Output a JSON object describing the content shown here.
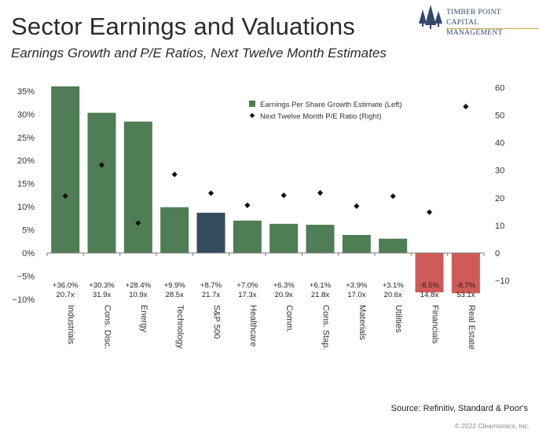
{
  "header": {
    "title": "Sector Earnings and Valuations",
    "subtitle": "Earnings Growth and P/E Ratios, Next Twelve Month Estimates"
  },
  "logo": {
    "line1": "Timber Point",
    "line2": "Capital Management",
    "color": "#34486b"
  },
  "footer": {
    "source": "Source: Refinitiv, Standard & Poor's",
    "copyright": "© 2022 Clearnomics, Inc."
  },
  "chart_data": {
    "type": "bar",
    "categories": [
      "Industrials",
      "Cons. Disc.",
      "Energy",
      "Technology",
      "S&P 500",
      "Healthcare",
      "Comm.",
      "Cons. Stap.",
      "Materials",
      "Utilities",
      "Financials",
      "Real Estate"
    ],
    "series": [
      {
        "name": "Earnings Per Share Growth Estimate (Left)",
        "type": "bar",
        "axis": "left",
        "values": [
          36.0,
          30.3,
          28.4,
          9.9,
          8.7,
          7.0,
          6.3,
          6.1,
          3.9,
          3.1,
          -8.5,
          -8.7
        ],
        "labels": [
          "+36.0%",
          "+30.3%",
          "+28.4%",
          "+9.9%",
          "+8.7%",
          "+7.0%",
          "+6.3%",
          "+6.1%",
          "+3.9%",
          "+3.1%",
          "-8.5%",
          "-8.7%"
        ]
      },
      {
        "name": "Next Twelve Month P/E Ratio (Right)",
        "type": "scatter",
        "axis": "right",
        "values": [
          20.7,
          31.9,
          10.9,
          28.5,
          21.7,
          17.3,
          20.9,
          21.8,
          17.0,
          20.6,
          14.8,
          53.1
        ],
        "labels": [
          "20.7x",
          "31.9x",
          "10.9x",
          "28.5x",
          "21.7x",
          "17.3x",
          "20.9x",
          "21.8x",
          "17.0x",
          "20.6x",
          "14.8x",
          "53.1x"
        ]
      }
    ],
    "y_left": {
      "ticks": [
        "35%",
        "30%",
        "25%",
        "20%",
        "15%",
        "10%",
        "5%",
        "0%",
        "−5%",
        "−10%"
      ],
      "values": [
        35,
        30,
        25,
        20,
        15,
        10,
        5,
        0,
        -5,
        -10
      ],
      "ylim": [
        -10,
        35
      ]
    },
    "y_right": {
      "ticks": [
        "60",
        "50",
        "40",
        "30",
        "20",
        "10",
        "0",
        "−10"
      ],
      "values": [
        60,
        50,
        40,
        30,
        20,
        10,
        0,
        -10
      ],
      "ylim": [
        -10,
        60
      ]
    },
    "legend_position": "top-right",
    "grid": false,
    "colors": {
      "positive": "#4f7d55",
      "benchmark": "#364a5e",
      "negative": "#cf5a57",
      "marker": "#111111"
    }
  }
}
